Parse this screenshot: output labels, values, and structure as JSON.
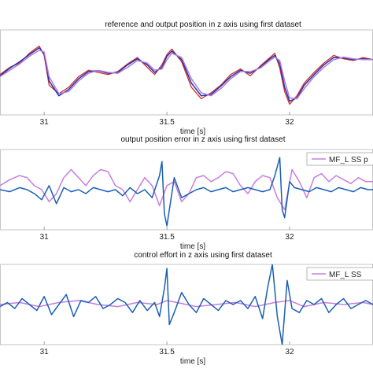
{
  "chart_data": [
    {
      "type": "line",
      "title": "reference and output position in z axis using first dataset",
      "xlabel": "time [s]",
      "xticks": [
        "31",
        "31.5",
        "32"
      ],
      "xlim": [
        30.82,
        32.34
      ],
      "ylim": [
        -1,
        1
      ],
      "legend": null,
      "series": [
        {
          "color": "#d62c2c",
          "x": [
            30.82,
            30.86,
            30.9,
            30.94,
            30.98,
            31.0,
            31.02,
            31.06,
            31.1,
            31.14,
            31.18,
            31.22,
            31.26,
            31.3,
            31.34,
            31.38,
            31.42,
            31.45,
            31.48,
            31.5,
            31.52,
            31.56,
            31.6,
            31.64,
            31.68,
            31.72,
            31.76,
            31.8,
            31.84,
            31.88,
            31.92,
            31.94,
            31.96,
            31.98,
            32.0,
            32.03,
            32.06,
            32.1,
            32.14,
            32.18,
            32.22,
            32.26,
            32.3,
            32.34
          ],
          "y": [
            -0.05,
            0.12,
            0.22,
            0.45,
            0.62,
            0.4,
            -0.3,
            -0.5,
            -0.35,
            -0.1,
            0.05,
            0.0,
            -0.05,
            0.02,
            0.2,
            0.35,
            0.12,
            -0.05,
            0.18,
            0.42,
            0.55,
            0.25,
            -0.35,
            -0.62,
            -0.48,
            -0.3,
            -0.05,
            0.08,
            -0.08,
            0.15,
            0.35,
            0.45,
            0.1,
            -0.45,
            -0.75,
            -0.55,
            -0.25,
            0.0,
            0.22,
            0.4,
            0.32,
            0.28,
            0.35,
            0.3
          ]
        },
        {
          "color": "#2233aa",
          "x": [
            30.82,
            30.86,
            30.9,
            30.94,
            30.98,
            31.0,
            31.02,
            31.06,
            31.1,
            31.14,
            31.18,
            31.22,
            31.26,
            31.3,
            31.34,
            31.38,
            31.42,
            31.45,
            31.48,
            31.5,
            31.52,
            31.56,
            31.6,
            31.64,
            31.68,
            31.72,
            31.76,
            31.8,
            31.84,
            31.88,
            31.92,
            31.94,
            31.96,
            31.98,
            32.0,
            32.03,
            32.06,
            32.1,
            32.14,
            32.18,
            32.22,
            32.26,
            32.3,
            32.34
          ],
          "y": [
            -0.08,
            0.1,
            0.25,
            0.42,
            0.58,
            0.45,
            -0.2,
            -0.55,
            -0.4,
            -0.15,
            0.02,
            0.04,
            -0.02,
            0.0,
            0.18,
            0.32,
            0.18,
            0.0,
            0.12,
            0.38,
            0.5,
            0.3,
            -0.25,
            -0.55,
            -0.52,
            -0.32,
            -0.1,
            0.05,
            -0.02,
            0.12,
            0.32,
            0.4,
            0.2,
            -0.35,
            -0.68,
            -0.6,
            -0.3,
            -0.05,
            0.18,
            0.35,
            0.34,
            0.3,
            0.32,
            0.3
          ]
        },
        {
          "color": "#b07ad6",
          "x": [
            30.82,
            30.86,
            30.9,
            30.94,
            30.98,
            31.0,
            31.02,
            31.06,
            31.1,
            31.14,
            31.18,
            31.22,
            31.26,
            31.3,
            31.34,
            31.38,
            31.42,
            31.45,
            31.48,
            31.5,
            31.52,
            31.56,
            31.6,
            31.64,
            31.68,
            31.72,
            31.76,
            31.8,
            31.84,
            31.88,
            31.92,
            31.94,
            31.96,
            31.98,
            32.0,
            32.03,
            32.06,
            32.1,
            32.14,
            32.18,
            32.22,
            32.26,
            32.3,
            32.34
          ],
          "y": [
            -0.1,
            0.05,
            0.2,
            0.38,
            0.52,
            0.48,
            -0.1,
            -0.5,
            -0.45,
            -0.2,
            -0.02,
            0.05,
            0.0,
            -0.02,
            0.12,
            0.28,
            0.22,
            0.05,
            0.08,
            0.3,
            0.45,
            0.35,
            -0.15,
            -0.48,
            -0.55,
            -0.38,
            -0.15,
            0.02,
            0.02,
            0.1,
            0.28,
            0.36,
            0.28,
            -0.2,
            -0.6,
            -0.62,
            -0.38,
            -0.1,
            0.12,
            0.3,
            0.36,
            0.32,
            0.3,
            0.3
          ]
        }
      ]
    },
    {
      "type": "line",
      "title": "output position error in z axis using first dataset",
      "xlabel": "time [s]",
      "xticks": [
        "31",
        "31.5",
        "32"
      ],
      "xlim": [
        30.82,
        32.34
      ],
      "ylim": [
        -1,
        1
      ],
      "legend": {
        "placement": "top-right",
        "entries": [
          "MF_L SS p"
        ]
      },
      "series": [
        {
          "name": "MF_L SS p",
          "color": "#c77ee0",
          "x": [
            30.82,
            30.86,
            30.9,
            30.93,
            30.96,
            30.99,
            31.02,
            31.05,
            31.08,
            31.11,
            31.14,
            31.17,
            31.2,
            31.23,
            31.26,
            31.29,
            31.32,
            31.35,
            31.38,
            31.41,
            31.44,
            31.47,
            31.5,
            31.53,
            31.56,
            31.59,
            31.62,
            31.65,
            31.68,
            31.71,
            31.74,
            31.77,
            31.8,
            31.83,
            31.86,
            31.89,
            31.92,
            31.95,
            31.98,
            32.01,
            32.04,
            32.07,
            32.1,
            32.13,
            32.16,
            32.19,
            32.22,
            32.25,
            32.28,
            32.31,
            32.34
          ],
          "y": [
            0.1,
            0.25,
            0.35,
            0.3,
            0.1,
            0.0,
            -0.3,
            -0.1,
            0.3,
            0.5,
            0.3,
            0.1,
            0.35,
            0.5,
            0.45,
            0.1,
            0.0,
            -0.3,
            0.0,
            0.3,
            0.1,
            -0.4,
            0.1,
            0.2,
            -0.3,
            -0.1,
            0.3,
            0.35,
            0.2,
            0.3,
            0.45,
            0.4,
            0.1,
            -0.1,
            0.2,
            0.35,
            0.3,
            -0.2,
            -0.5,
            0.5,
            0.2,
            -0.2,
            0.3,
            0.4,
            0.2,
            0.35,
            0.25,
            0.15,
            0.3,
            0.2,
            0.2
          ]
        },
        {
          "color": "#1a5fb4",
          "x": [
            30.82,
            30.86,
            30.9,
            30.93,
            30.96,
            30.99,
            31.02,
            31.05,
            31.08,
            31.11,
            31.14,
            31.17,
            31.2,
            31.23,
            31.26,
            31.29,
            31.32,
            31.35,
            31.38,
            31.41,
            31.44,
            31.47,
            31.48,
            31.49,
            31.5,
            31.53,
            31.56,
            31.59,
            31.62,
            31.65,
            31.68,
            31.71,
            31.74,
            31.77,
            31.8,
            31.83,
            31.86,
            31.89,
            31.92,
            31.94,
            31.96,
            31.97,
            31.98,
            32.0,
            32.02,
            32.05,
            32.08,
            32.11,
            32.14,
            32.17,
            32.2,
            32.23,
            32.26,
            32.29,
            32.32,
            32.34
          ],
          "y": [
            0.0,
            -0.05,
            0.05,
            0.0,
            -0.1,
            -0.25,
            0.1,
            -0.35,
            0.05,
            -0.05,
            0.0,
            -0.1,
            0.05,
            0.0,
            -0.05,
            0.0,
            -0.15,
            0.05,
            -0.1,
            0.0,
            -0.2,
            0.35,
            0.7,
            -0.6,
            -0.9,
            0.3,
            -0.2,
            -0.1,
            0.0,
            0.05,
            -0.05,
            0.0,
            0.05,
            -0.05,
            0.0,
            0.05,
            0.0,
            -0.05,
            0.0,
            0.35,
            0.8,
            -0.5,
            -0.7,
            0.2,
            0.05,
            0.0,
            -0.05,
            0.05,
            0.0,
            -0.05,
            0.05,
            0.0,
            -0.05,
            0.05,
            0.0,
            0.0
          ]
        }
      ]
    },
    {
      "type": "line",
      "title": "control effort in z axis using first dataset",
      "xlabel": "time [s]",
      "xticks": [
        "31",
        "31.5",
        "32"
      ],
      "xlim": [
        30.82,
        32.34
      ],
      "ylim": [
        -1,
        1
      ],
      "legend": {
        "placement": "top-right",
        "entries": [
          "MF_L SS"
        ]
      },
      "series": [
        {
          "name": "MF_L SS",
          "color": "#c77ee0",
          "x": [
            30.82,
            30.9,
            30.98,
            31.06,
            31.14,
            31.22,
            31.3,
            31.38,
            31.46,
            31.5,
            31.54,
            31.62,
            31.7,
            31.78,
            31.86,
            31.94,
            32.0,
            32.06,
            32.14,
            32.22,
            32.3,
            32.34
          ],
          "y": [
            0.0,
            0.05,
            -0.05,
            0.05,
            0.1,
            0.0,
            -0.05,
            0.05,
            0.0,
            0.1,
            0.05,
            -0.05,
            0.0,
            0.05,
            -0.05,
            0.05,
            0.1,
            -0.05,
            0.05,
            0.0,
            0.05,
            0.0
          ]
        },
        {
          "color": "#1a5fb4",
          "x": [
            30.82,
            30.85,
            30.88,
            30.91,
            30.94,
            30.97,
            31.0,
            31.03,
            31.06,
            31.09,
            31.12,
            31.15,
            31.18,
            31.21,
            31.24,
            31.27,
            31.3,
            31.33,
            31.36,
            31.39,
            31.42,
            31.45,
            31.47,
            31.49,
            31.5,
            31.51,
            31.53,
            31.56,
            31.59,
            31.62,
            31.65,
            31.68,
            31.71,
            31.74,
            31.77,
            31.8,
            31.83,
            31.86,
            31.89,
            31.91,
            31.93,
            31.95,
            31.97,
            31.99,
            32.01,
            32.04,
            32.07,
            32.1,
            32.13,
            32.16,
            32.19,
            32.22,
            32.25,
            32.28,
            32.31,
            32.34
          ],
          "y": [
            -0.05,
            0.05,
            -0.1,
            0.15,
            0.0,
            -0.15,
            0.2,
            -0.25,
            0.0,
            0.25,
            -0.3,
            0.1,
            0.05,
            0.2,
            -0.1,
            0.0,
            0.15,
            0.05,
            -0.2,
            0.1,
            -0.15,
            0.05,
            -0.3,
            0.4,
            0.9,
            -0.5,
            -0.2,
            0.3,
            0.0,
            -0.2,
            0.15,
            0.0,
            -0.15,
            0.1,
            0.0,
            0.1,
            -0.1,
            0.2,
            -0.35,
            0.4,
            1.0,
            -0.3,
            -1.0,
            0.6,
            -0.1,
            -0.2,
            0.1,
            0.0,
            0.15,
            -0.2,
            0.0,
            0.15,
            -0.1,
            0.0,
            0.1,
            0.0
          ]
        }
      ]
    }
  ]
}
